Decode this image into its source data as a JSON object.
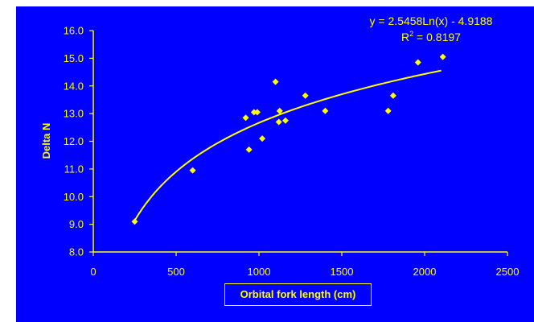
{
  "chart_data": {
    "type": "scatter",
    "title": "",
    "xlabel": "Orbital fork length (cm)",
    "ylabel": "Delta N",
    "xlim": [
      0,
      2500
    ],
    "ylim": [
      8.0,
      16.0
    ],
    "x_ticks": [
      "0",
      "500",
      "1000",
      "1500",
      "2000",
      "2500"
    ],
    "y_ticks": [
      "8.0",
      "9.0",
      "10.0",
      "11.0",
      "12.0",
      "13.0",
      "14.0",
      "15.0",
      "16.0"
    ],
    "grid": false,
    "legend": "none",
    "points": [
      {
        "x": 250,
        "y": 9.1
      },
      {
        "x": 600,
        "y": 10.95
      },
      {
        "x": 920,
        "y": 12.85
      },
      {
        "x": 940,
        "y": 11.7
      },
      {
        "x": 970,
        "y": 13.05
      },
      {
        "x": 990,
        "y": 13.05
      },
      {
        "x": 1020,
        "y": 12.1
      },
      {
        "x": 1100,
        "y": 14.15
      },
      {
        "x": 1120,
        "y": 12.7
      },
      {
        "x": 1125,
        "y": 13.1
      },
      {
        "x": 1160,
        "y": 12.75
      },
      {
        "x": 1280,
        "y": 13.65
      },
      {
        "x": 1400,
        "y": 13.1
      },
      {
        "x": 1780,
        "y": 13.1
      },
      {
        "x": 1810,
        "y": 13.65
      },
      {
        "x": 1960,
        "y": 14.85
      },
      {
        "x": 2110,
        "y": 15.05
      }
    ],
    "trendline": {
      "type": "logarithmic",
      "coef_a": 2.5458,
      "coef_b": -4.9188,
      "x_start": 250,
      "x_end": 2100,
      "equation_label": "y = 2.5458Ln(x) - 4.9188",
      "r2_label": "R",
      "r2_value": " = 0.8197"
    },
    "colors": {
      "background": "#0000FF",
      "foreground": "#FFFF00"
    }
  }
}
